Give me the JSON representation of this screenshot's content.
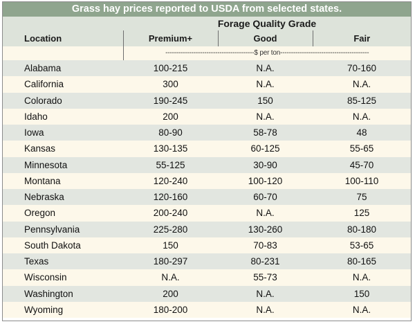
{
  "title": "Grass hay prices reported to USDA from selected states.",
  "group_header": "Forage Quality Grade",
  "columns": {
    "location": "Location",
    "premium": "Premium+",
    "good": "Good",
    "fair": "Fair"
  },
  "unit_label": "-----------------------------------------$ per ton-----------------------------------------",
  "rows": [
    {
      "location": "Alabama",
      "premium": "100-215",
      "good": "N.A.",
      "fair": "70-160"
    },
    {
      "location": "California",
      "premium": "300",
      "good": "N.A.",
      "fair": "N.A."
    },
    {
      "location": "Colorado",
      "premium": "190-245",
      "good": "150",
      "fair": "85-125"
    },
    {
      "location": "Idaho",
      "premium": "200",
      "good": "N.A.",
      "fair": "N.A."
    },
    {
      "location": "Iowa",
      "premium": "80-90",
      "good": "58-78",
      "fair": "48"
    },
    {
      "location": "Kansas",
      "premium": "130-135",
      "good": "60-125",
      "fair": "55-65"
    },
    {
      "location": "Minnesota",
      "premium": "55-125",
      "good": "30-90",
      "fair": "45-70"
    },
    {
      "location": "Montana",
      "premium": "120-240",
      "good": "100-120",
      "fair": "100-110"
    },
    {
      "location": "Nebraska",
      "premium": "120-160",
      "good": "60-70",
      "fair": "75"
    },
    {
      "location": "Oregon",
      "premium": "200-240",
      "good": "N.A.",
      "fair": "125"
    },
    {
      "location": "Pennsylvania",
      "premium": "225-280",
      "good": "130-260",
      "fair": "80-180"
    },
    {
      "location": "South Dakota",
      "premium": "150",
      "good": "70-83",
      "fair": "53-65"
    },
    {
      "location": "Texas",
      "premium": "180-297",
      "good": "80-231",
      "fair": "80-165"
    },
    {
      "location": "Wisconsin",
      "premium": "N.A.",
      "good": "55-73",
      "fair": "N.A."
    },
    {
      "location": "Washington",
      "premium": "200",
      "good": "N.A.",
      "fair": "150"
    },
    {
      "location": "Wyoming",
      "premium": "180-200",
      "good": "N.A.",
      "fair": "N.A."
    }
  ]
}
